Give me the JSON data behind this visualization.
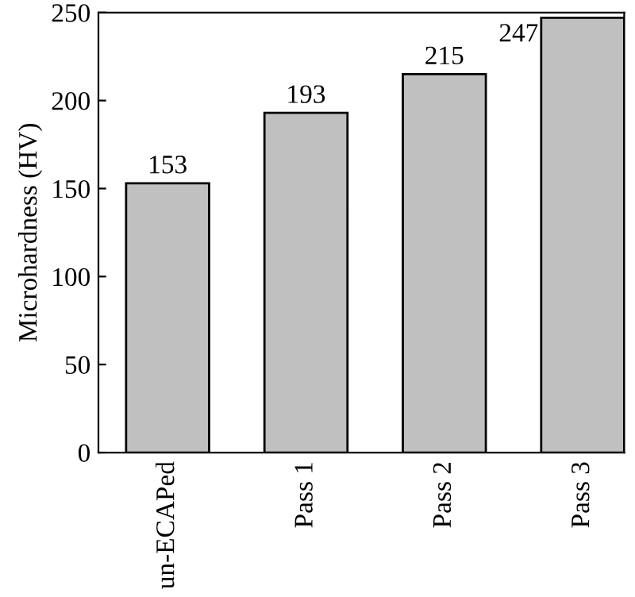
{
  "chart_data": {
    "type": "bar",
    "ylabel": "Microhardness (HV)",
    "categories": [
      "un-ECAPed",
      "Pass 1",
      "Pass 2",
      "Pass 3"
    ],
    "values": [
      153,
      193,
      215,
      247
    ],
    "color": "#c0c0c0",
    "ylim": [
      0,
      250
    ],
    "yticks": [
      0,
      50,
      100,
      150,
      200,
      250
    ],
    "data_labels": true,
    "grid": false
  }
}
